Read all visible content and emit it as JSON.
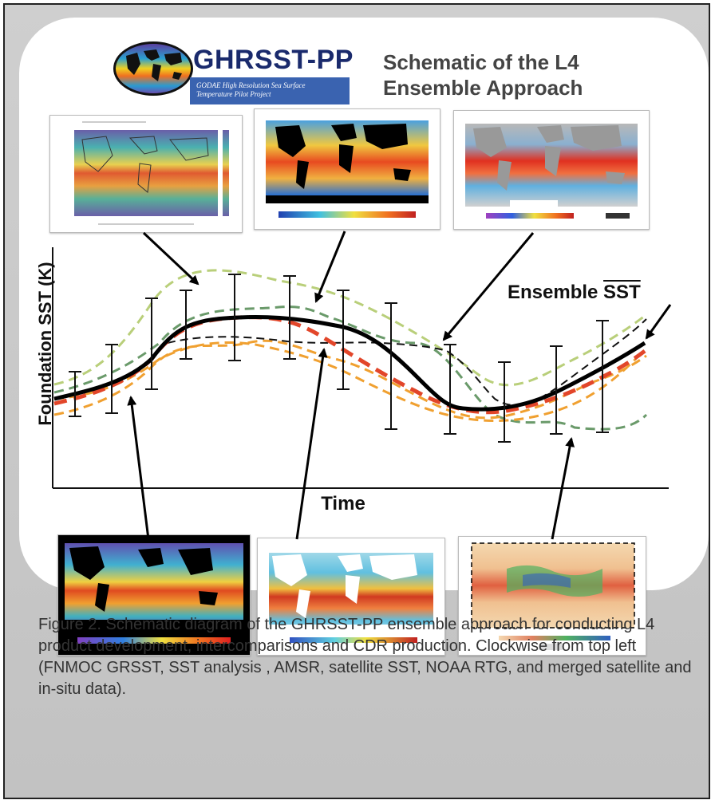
{
  "header": {
    "logo_text": "GHRSST-PP",
    "logo_subtitle": "GODAE High Resolution Sea Surface Temperature Pilot Project",
    "schematic_title_line1": "Schematic of the L4",
    "schematic_title_line2": "Ensemble Approach"
  },
  "plot": {
    "ylabel": "Foundation SST (K)",
    "xlabel": "Time",
    "ensemble_label_prefix": "Ensemble ",
    "ensemble_label_sst": "SST"
  },
  "caption": "Figure 2. Schematic diagram of the GHRSST-PP ensemble approach for conducting L4 product development, intercomparisons and CDR production. Clockwise from top left (FNMOC GRSST, SST analysis , AMSR, satellite SST, NOAA RTG, and merged satellite and in-situ data).",
  "colors": {
    "ensemble_line": "#000000",
    "red_dashed": "#e2462a",
    "orange_dashed": "#f0a030",
    "green_dashed": "#6a9a6a",
    "lightgreen_dashed": "#b9cf7a",
    "black_dashed": "#111111"
  },
  "thumbnails": [
    {
      "name": "thumb-top-left"
    },
    {
      "name": "thumb-top-center"
    },
    {
      "name": "thumb-top-right"
    },
    {
      "name": "thumb-bottom-left"
    },
    {
      "name": "thumb-bottom-center"
    },
    {
      "name": "thumb-bottom-right"
    }
  ]
}
